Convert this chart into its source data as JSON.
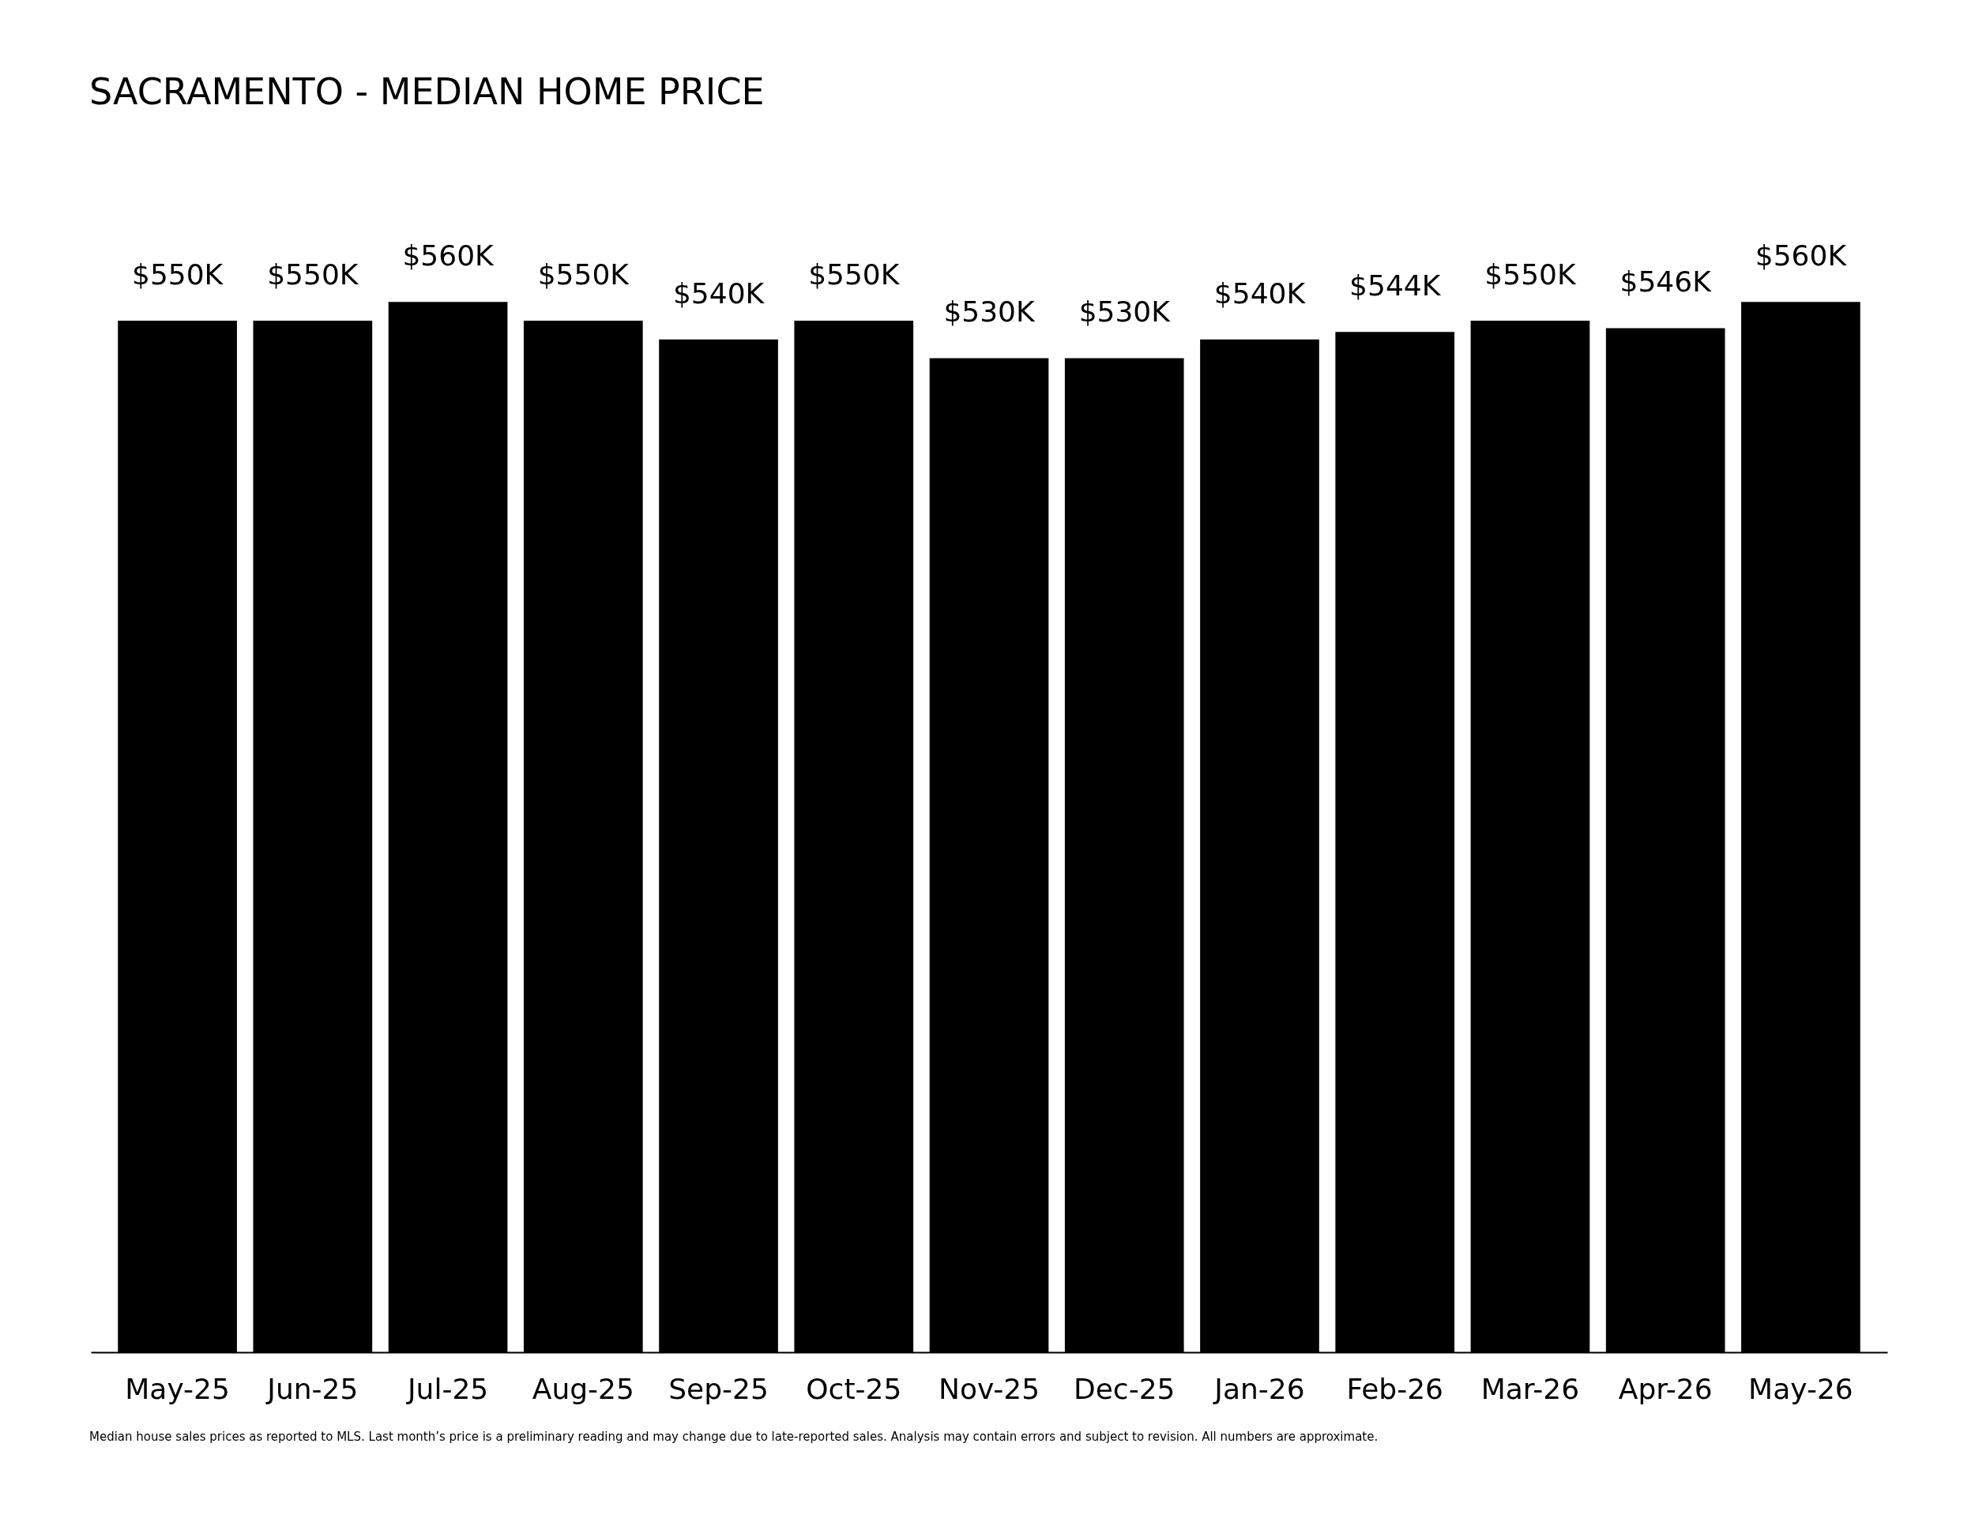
{
  "chart_data": {
    "type": "bar",
    "title": "SACRAMENTO - MEDIAN HOME PRICE",
    "categories": [
      "May-25",
      "Jun-25",
      "Jul-25",
      "Aug-25",
      "Sep-25",
      "Oct-25",
      "Nov-25",
      "Dec-25",
      "Jan-26",
      "Feb-26",
      "Mar-26",
      "Apr-26",
      "May-26"
    ],
    "values": [
      550,
      550,
      560,
      550,
      540,
      550,
      530,
      530,
      540,
      544,
      550,
      546,
      560
    ],
    "value_labels": [
      "$550K",
      "$550K",
      "$560K",
      "$550K",
      "$540K",
      "$550K",
      "$530K",
      "$530K",
      "$540K",
      "$544K",
      "$550K",
      "$546K",
      "$560K"
    ],
    "color": "#000000",
    "annotations": [
      "Median house sales prices as reported to MLS. Last month’s price is a preliminary reading and may change due to late-reported sales. Analysis may contain errors and subject to revision. All numbers are approximate."
    ]
  }
}
